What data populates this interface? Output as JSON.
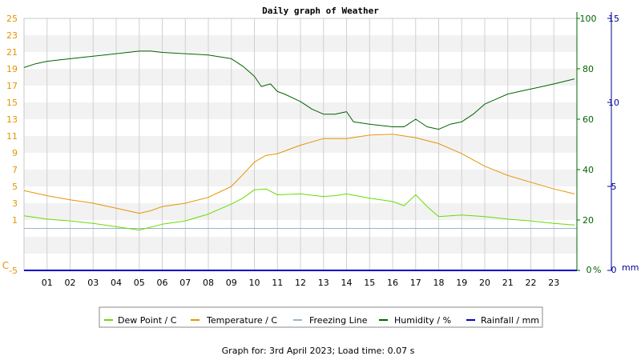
{
  "chart_data": {
    "type": "line",
    "title": "Daily graph of Weather",
    "footer": "Graph for: 3rd April 2023; Load time: 0.07 s",
    "x_ticks": [
      "01",
      "02",
      "03",
      "04",
      "05",
      "06",
      "07",
      "08",
      "09",
      "10",
      "11",
      "12",
      "13",
      "14",
      "15",
      "16",
      "17",
      "18",
      "19",
      "20",
      "21",
      "22",
      "23"
    ],
    "xlim": [
      0,
      24
    ],
    "axes": {
      "temp": {
        "unit": "C",
        "ylim": [
          -5,
          25
        ],
        "ticks": [
          -5,
          1,
          3,
          5,
          7,
          9,
          11,
          13,
          15,
          17,
          19,
          21,
          23,
          25
        ],
        "tick_labels": [
          "-5",
          "1",
          "3",
          "5",
          "7",
          "9",
          "11",
          "13",
          "15",
          "17",
          "19",
          "21",
          "23",
          "25"
        ],
        "color": "#e69500"
      },
      "humidity": {
        "unit": "%",
        "ylim": [
          0,
          100
        ],
        "ticks": [
          0,
          20,
          40,
          60,
          80,
          100
        ],
        "color": "#006400"
      },
      "rain": {
        "unit": "mm",
        "ylim": [
          0,
          15
        ],
        "ticks": [
          0,
          5,
          10,
          15
        ],
        "color": "#000099"
      }
    },
    "series": [
      {
        "name": "Dew Point / C",
        "axis": "temp",
        "color": "#66dd00",
        "x": [
          0,
          1,
          2,
          3,
          4,
          5,
          6,
          7,
          8,
          9,
          9.5,
          10,
          10.5,
          11,
          12,
          13,
          13.5,
          14,
          15,
          16,
          16.5,
          17,
          17.5,
          18,
          19,
          20,
          21,
          22,
          23,
          23.9
        ],
        "y": [
          1.5,
          1.1,
          0.9,
          0.6,
          0.2,
          -0.2,
          0.5,
          0.9,
          1.7,
          2.9,
          3.6,
          4.6,
          4.7,
          4.0,
          4.1,
          3.8,
          3.9,
          4.1,
          3.6,
          3.2,
          2.7,
          4.0,
          2.6,
          1.4,
          1.6,
          1.4,
          1.1,
          0.9,
          0.6,
          0.4
        ]
      },
      {
        "name": "Temperature / C",
        "axis": "temp",
        "color": "#e69500",
        "x": [
          0,
          1,
          2,
          3,
          4,
          5,
          5.5,
          6,
          7,
          8,
          9,
          9.5,
          10,
          10.5,
          11,
          12,
          13,
          14,
          15,
          16,
          17,
          18,
          18.5,
          19,
          20,
          21,
          22,
          23,
          23.9
        ],
        "y": [
          4.5,
          3.9,
          3.4,
          3.0,
          2.4,
          1.8,
          2.1,
          2.6,
          3.0,
          3.7,
          5.0,
          6.4,
          7.9,
          8.7,
          8.9,
          9.9,
          10.7,
          10.7,
          11.1,
          11.2,
          10.8,
          10.1,
          9.5,
          8.9,
          7.4,
          6.3,
          5.5,
          4.7,
          4.1
        ]
      },
      {
        "name": "Freezing Line",
        "axis": "temp",
        "color": "#99b4cc",
        "x": [
          0,
          24
        ],
        "y": [
          0,
          0
        ]
      },
      {
        "name": "Humidity / %",
        "axis": "humidity",
        "color": "#006400",
        "x": [
          0,
          0.5,
          1,
          2,
          3,
          4,
          4.5,
          5,
          5.5,
          6,
          7,
          8,
          9,
          9.5,
          10,
          10.3,
          10.7,
          11,
          11.3,
          12,
          12.5,
          13,
          13.5,
          14,
          14.3,
          15,
          16,
          16.5,
          17,
          17.5,
          18,
          18.5,
          19,
          19.5,
          20,
          20.5,
          21,
          21.5,
          22,
          22.5,
          23,
          23.9
        ],
        "y": [
          80.5,
          82,
          83,
          84,
          85,
          86,
          86.5,
          87,
          87,
          86.5,
          86,
          85.5,
          84,
          81,
          77,
          73,
          74,
          71,
          70,
          67,
          64,
          62,
          62,
          63,
          59,
          58,
          57,
          57,
          60,
          57,
          56,
          58,
          59,
          62,
          66,
          68,
          70,
          71,
          72,
          73,
          74,
          76
        ]
      },
      {
        "name": "Rainfall / mm",
        "axis": "rain",
        "color": "#0000cc",
        "x": [
          0,
          24
        ],
        "y": [
          0,
          0
        ]
      }
    ],
    "grid": true,
    "legend": {
      "position": "bottom-center"
    }
  }
}
